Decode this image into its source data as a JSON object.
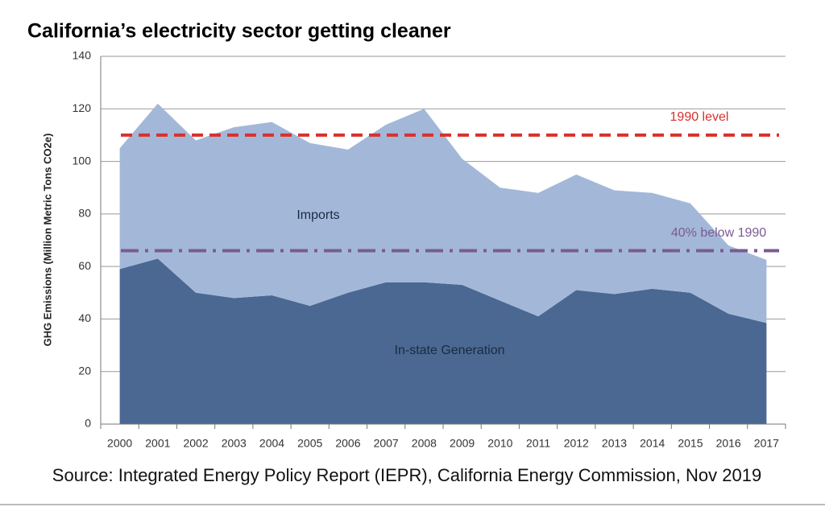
{
  "chart_data": {
    "type": "stacked_area",
    "title": "California’s electricity sector getting cleaner",
    "y_label": "GHG Emissions (Million Metric Tons CO2e)",
    "source": "Source: Integrated Energy Policy Report (IEPR), California Energy Commission, Nov 2019",
    "categories": [
      "2000",
      "2001",
      "2002",
      "2003",
      "2004",
      "2005",
      "2006",
      "2007",
      "2008",
      "2009",
      "2010",
      "2011",
      "2012",
      "2013",
      "2014",
      "2015",
      "2016",
      "2017"
    ],
    "series": [
      {
        "name": "In-state Generation",
        "color": "#4a6891",
        "values": [
          59,
          63,
          50,
          48,
          49,
          45,
          50,
          54,
          54,
          53,
          47,
          41,
          51,
          49.5,
          51.5,
          50,
          42,
          38.5
        ]
      },
      {
        "name": "Imports",
        "color": "#a3b8d8",
        "values": [
          46,
          59,
          58,
          65,
          66,
          62,
          54.5,
          60,
          66,
          48,
          43,
          47,
          44,
          39.5,
          36.5,
          34,
          26,
          24
        ]
      }
    ],
    "reference_lines": [
      {
        "label": "1990 level",
        "value": 110,
        "color": "#d9302c",
        "style": "dashed"
      },
      {
        "label": "40% below 1990",
        "value": 66,
        "color": "#7b5a93",
        "style": "dashdot"
      }
    ],
    "ylim": [
      0,
      140
    ],
    "yticks": [
      0,
      20,
      40,
      60,
      80,
      100,
      120,
      140
    ],
    "grid": true
  }
}
